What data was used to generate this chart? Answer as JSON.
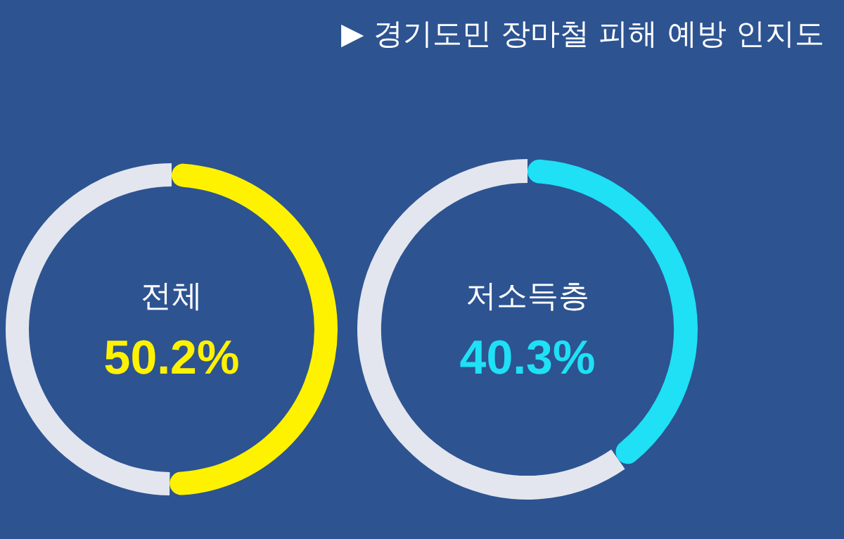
{
  "chart_data": [
    {
      "type": "other",
      "title": "▶ 경기도민 장마철 피해 예방 인지도"
    },
    {
      "type": "donut",
      "categories": [
        "전체",
        null
      ],
      "values": [
        50.2,
        49.8
      ],
      "colors": [
        "#fff200",
        "#e3e6ee"
      ],
      "value_labels": [
        "50.2%",
        null
      ]
    },
    {
      "type": "donut",
      "categories": [
        "저소득층",
        null
      ],
      "values": [
        40.3,
        59.7
      ],
      "colors": [
        "#1fe0f5",
        "#e3e6ee"
      ],
      "value_labels": [
        "40.3%",
        null
      ]
    }
  ]
}
